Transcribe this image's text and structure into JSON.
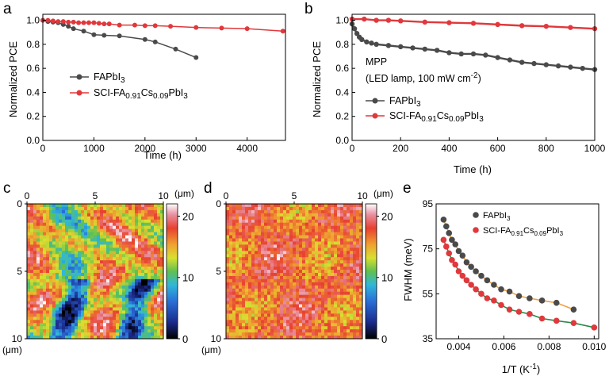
{
  "figure": {
    "colors": {
      "fapbi": "#4a4a4a",
      "sci": "#e0383c",
      "fit_fapbi": "#f0a040",
      "fit_sci": "#2a8a4a"
    }
  },
  "chart_data": [
    {
      "id": "a",
      "panel_label": "a",
      "type": "line",
      "xlabel": "Time (h)",
      "ylabel": "Normalized PCE",
      "xlim": [
        0,
        4750
      ],
      "ylim": [
        0,
        1.05
      ],
      "xticks": [
        "0",
        "1000",
        "2000",
        "3000",
        "4000"
      ],
      "yticks": [
        "0.0",
        "0.2",
        "0.4",
        "0.6",
        "0.8",
        "1.0"
      ],
      "legend": {
        "s1": "FAPbI",
        "s1_sub": "3",
        "s2": "SCI-FA",
        "s2_sub1": "0.91",
        "s2_mid": "Cs",
        "s2_sub2": "0.09",
        "s2_end": "PbI",
        "s2_sub3": "3"
      },
      "series": [
        {
          "name": "FAPbI3",
          "x": [
            0,
            100,
            200,
            300,
            400,
            500,
            600,
            800,
            1000,
            1200,
            1500,
            2000,
            2200,
            2600,
            3000
          ],
          "y": [
            1.0,
            0.99,
            0.985,
            0.98,
            0.965,
            0.95,
            0.93,
            0.91,
            0.88,
            0.875,
            0.87,
            0.84,
            0.82,
            0.76,
            0.69
          ]
        },
        {
          "name": "SCI-FA0.91Cs0.09PbI3",
          "x": [
            0,
            100,
            200,
            300,
            400,
            500,
            600,
            700,
            800,
            900,
            1000,
            1100,
            1200,
            1300,
            1500,
            1800,
            2000,
            2200,
            2500,
            3000,
            3500,
            4000,
            4700
          ],
          "y": [
            1.0,
            1.0,
            0.995,
            0.99,
            0.99,
            0.985,
            0.985,
            0.98,
            0.98,
            0.98,
            0.98,
            0.975,
            0.97,
            0.97,
            0.96,
            0.96,
            0.955,
            0.955,
            0.95,
            0.94,
            0.935,
            0.93,
            0.91
          ]
        }
      ]
    },
    {
      "id": "b",
      "panel_label": "b",
      "type": "line",
      "xlabel": "Time (h)",
      "ylabel": "Normalized PCE",
      "xlim": [
        0,
        1000
      ],
      "ylim": [
        0,
        1.05
      ],
      "xticks": [
        "0",
        "200",
        "400",
        "600",
        "800",
        "1000"
      ],
      "yticks": [
        "0.0",
        "0.2",
        "0.4",
        "0.6",
        "0.8",
        "1.0"
      ],
      "annotation": {
        "line1": "MPP",
        "line2": "(LED lamp, 100 mW cm",
        "line2_sup": "-2",
        "line2_end": ")"
      },
      "legend": {
        "s1": "FAPbI",
        "s1_sub": "3",
        "s2": "SCI-FA",
        "s2_sub1": "0.91",
        "s2_mid": "Cs",
        "s2_sub2": "0.09",
        "s2_end": "PbI",
        "s2_sub3": "3"
      },
      "series": [
        {
          "name": "FAPbI3",
          "x": [
            0,
            10,
            20,
            30,
            40,
            60,
            80,
            100,
            150,
            200,
            250,
            300,
            350,
            400,
            450,
            500,
            550,
            600,
            650,
            700,
            750,
            800,
            850,
            900,
            950,
            1000
          ],
          "y": [
            0.97,
            0.93,
            0.89,
            0.86,
            0.84,
            0.82,
            0.81,
            0.8,
            0.79,
            0.78,
            0.77,
            0.76,
            0.75,
            0.73,
            0.72,
            0.72,
            0.71,
            0.69,
            0.67,
            0.65,
            0.64,
            0.63,
            0.62,
            0.61,
            0.6,
            0.59
          ]
        },
        {
          "name": "SCI-FA0.91Cs0.09PbI3",
          "x": [
            0,
            50,
            100,
            150,
            200,
            300,
            400,
            500,
            600,
            700,
            800,
            900,
            1000
          ],
          "y": [
            1.01,
            1.01,
            1.0,
            1.0,
            0.995,
            0.985,
            0.98,
            0.975,
            0.965,
            0.955,
            0.95,
            0.94,
            0.93
          ]
        }
      ]
    },
    {
      "id": "c",
      "panel_label": "c",
      "type": "heatmap",
      "xticks": [
        "0",
        "5",
        "10"
      ],
      "yticks": [
        "0",
        "5",
        "10"
      ],
      "x_unit": "(μm)",
      "y_unit": "(μm)",
      "colorbar_ticks": [
        "20",
        "10",
        "0"
      ],
      "range": [
        0,
        22
      ],
      "description_values": {
        "mean": 14,
        "low_regions_min": 2
      }
    },
    {
      "id": "d",
      "panel_label": "d",
      "type": "heatmap",
      "xticks": [
        "0",
        "5",
        "10"
      ],
      "yticks": [
        "0",
        "5",
        "10"
      ],
      "x_unit": "(μm)",
      "y_unit": "(μm)",
      "colorbar_ticks": [
        "20",
        "10",
        "0"
      ],
      "range": [
        0,
        22
      ],
      "description_values": {
        "mean": 17
      }
    },
    {
      "id": "e",
      "panel_label": "e",
      "type": "scatter",
      "xlabel": "1/T (K",
      "xlabel_sup": "-1",
      "xlabel_end": ")",
      "ylabel": "FWHM (meV)",
      "xlim": [
        0.003,
        0.0102
      ],
      "ylim": [
        35,
        95
      ],
      "xticks": [
        "0.004",
        "0.006",
        "0.008",
        "0.010"
      ],
      "yticks": [
        "35",
        "55",
        "75",
        "95"
      ],
      "legend": {
        "s1": "FAPbI",
        "s1_sub": "3",
        "s2": "SCI-FA",
        "s2_sub1": "0.91",
        "s2_mid": "Cs",
        "s2_sub2": "0.09",
        "s2_end": "PbI",
        "s2_sub3": "3"
      },
      "series": [
        {
          "name": "FAPbI3",
          "x": [
            0.00333,
            0.00345,
            0.00357,
            0.0037,
            0.00385,
            0.004,
            0.00417,
            0.00435,
            0.00455,
            0.00476,
            0.005,
            0.00526,
            0.00556,
            0.00588,
            0.00625,
            0.00667,
            0.00714,
            0.00769,
            0.00833,
            0.00909
          ],
          "y": [
            88,
            85,
            82,
            79,
            77,
            74,
            72,
            69,
            67,
            65,
            63,
            61,
            59,
            57,
            56,
            54,
            53,
            52,
            51,
            48
          ]
        },
        {
          "name": "SCI-FA0.91Cs0.09PbI3",
          "x": [
            0.00333,
            0.00345,
            0.00357,
            0.0037,
            0.00385,
            0.004,
            0.00417,
            0.00435,
            0.00455,
            0.00476,
            0.005,
            0.00526,
            0.00556,
            0.00588,
            0.00625,
            0.00667,
            0.00714,
            0.00769,
            0.00833,
            0.00909,
            0.01
          ],
          "y": [
            79,
            76,
            73,
            70,
            68,
            65,
            63,
            61,
            59,
            57,
            55,
            53,
            52,
            50,
            48,
            47,
            46,
            44,
            43,
            42,
            40
          ]
        }
      ]
    }
  ]
}
